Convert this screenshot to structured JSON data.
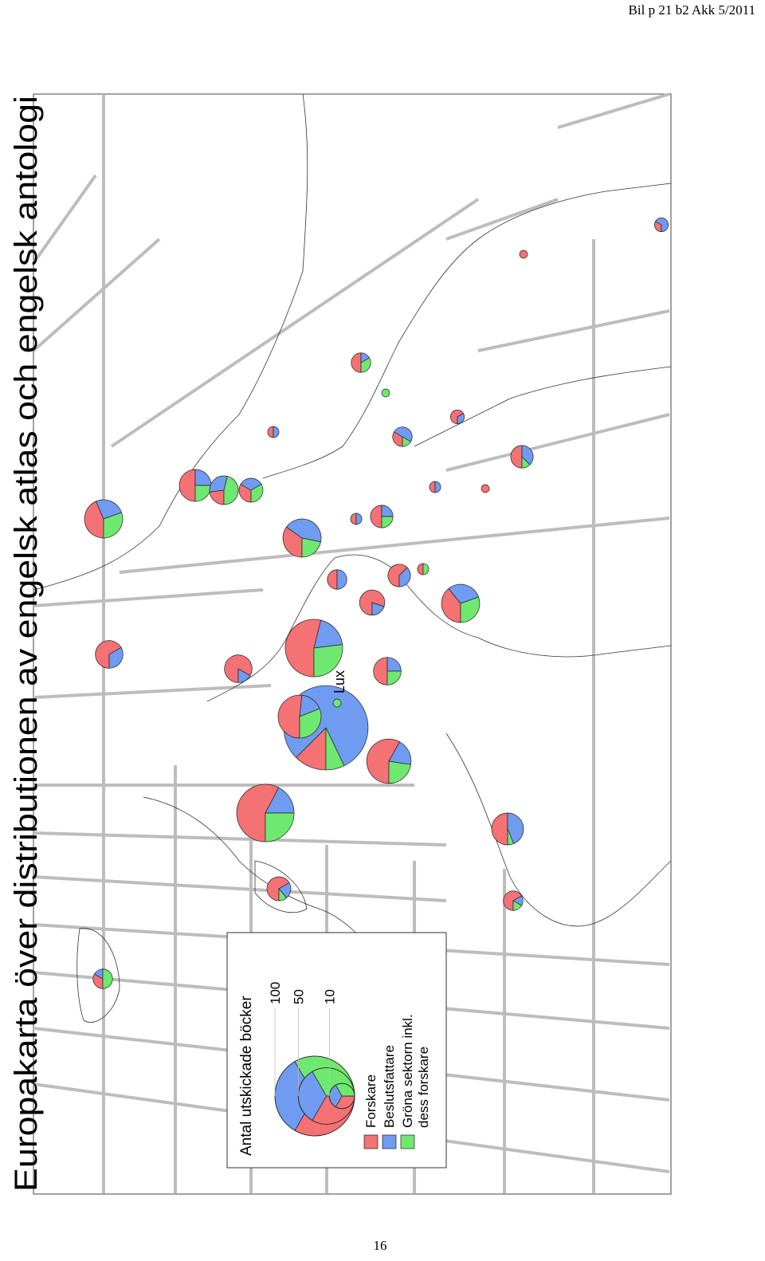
{
  "header": "Bil p 21 b2  Akk 5/2011",
  "title": "Europakarta över distributionen av engelsk atlas och engelsk antologi",
  "map": {
    "label": "Lux",
    "pies": [
      [
        1,
        2,
        0
      ],
      [
        1,
        0,
        0
      ],
      [
        3,
        1,
        2
      ],
      [
        0,
        0,
        1
      ],
      [
        1,
        1,
        0
      ],
      [
        2,
        3,
        1
      ],
      [
        2,
        1,
        0
      ],
      [
        4,
        3,
        1
      ],
      [
        1,
        1,
        0
      ],
      [
        1,
        0,
        0
      ],
      [
        10,
        6,
        7
      ],
      [
        8,
        4,
        4
      ],
      [
        3,
        4,
        6
      ],
      [
        3,
        3,
        3
      ],
      [
        8,
        10,
        5
      ],
      [
        1,
        1,
        0
      ],
      [
        4,
        2,
        2
      ],
      [
        3,
        3,
        0
      ],
      [
        5,
        3,
        0
      ],
      [
        1,
        0,
        1
      ],
      [
        9,
        7,
        7
      ],
      [
        8,
        2,
        0
      ],
      [
        8,
        4,
        0
      ],
      [
        10,
        2,
        0
      ],
      [
        28,
        10,
        14
      ],
      [
        6,
        3,
        3
      ],
      [
        0,
        0,
        1
      ],
      [
        14,
        90,
        8
      ],
      [
        15,
        5,
        9
      ],
      [
        18,
        6,
        7
      ],
      [
        30,
        9,
        13
      ],
      [
        8,
        7,
        1
      ],
      [
        6,
        2,
        1
      ],
      [
        4,
        1,
        1
      ],
      [
        2,
        1,
        3
      ]
    ]
  },
  "legend": {
    "title": "Antal utskickade böcker",
    "sizes": [
      100,
      50,
      10
    ],
    "categories": [
      {
        "lines": [
          "Forskare"
        ],
        "color": "#f47174"
      },
      {
        "lines": [
          "Beslutsfattare"
        ],
        "color": "#6f9bf0"
      },
      {
        "lines": [
          "Gröna sektorn inkl.",
          "dess forskare"
        ],
        "color": "#6fe86f"
      }
    ]
  },
  "page_number": "16"
}
